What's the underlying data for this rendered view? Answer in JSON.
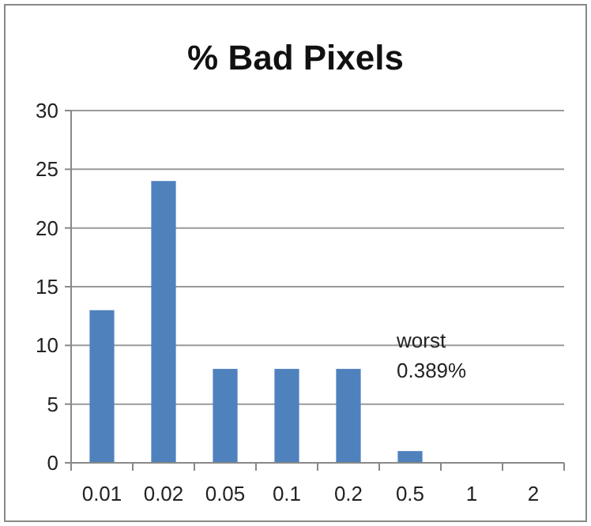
{
  "chart_data": {
    "type": "bar",
    "title": "% Bad Pixels",
    "categories": [
      "0.01",
      "0.02",
      "0.05",
      "0.1",
      "0.2",
      "0.5",
      "1",
      "2"
    ],
    "values": [
      13,
      24,
      8,
      8,
      8,
      1,
      0,
      0
    ],
    "color": "#4f81bd",
    "ylim": [
      0,
      30
    ],
    "yticks": [
      0,
      5,
      10,
      15,
      20,
      25,
      30
    ],
    "grid": "y",
    "annotations": [
      "worst\n0.389%"
    ]
  }
}
